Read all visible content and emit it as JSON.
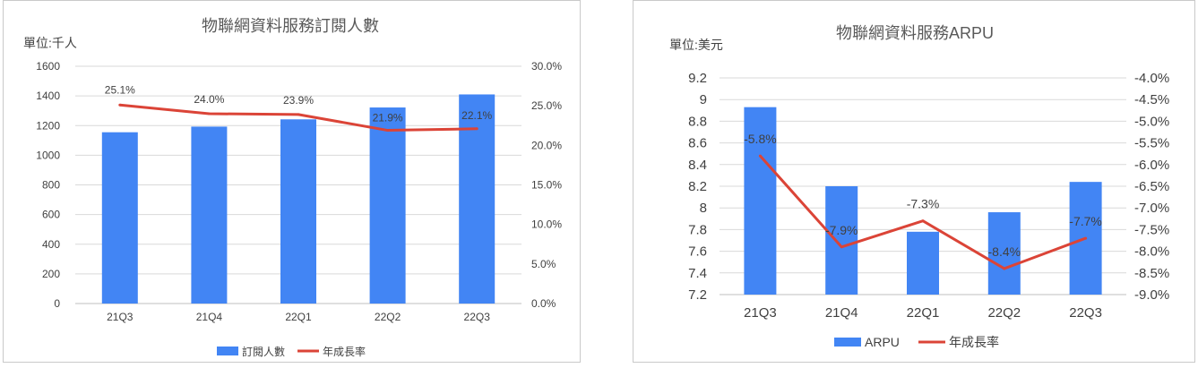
{
  "colors": {
    "bar": "#4285f4",
    "line": "#db4437",
    "grid": "#d9d9d9",
    "axis": "#bfbfbf"
  },
  "chart_data": [
    {
      "type": "bar",
      "title": "物聯網資料服務訂閱人數",
      "unit_label": "單位:千人",
      "categories": [
        "21Q3",
        "21Q4",
        "22Q1",
        "22Q2",
        "22Q3"
      ],
      "series": [
        {
          "name": "訂閱人數",
          "type": "bar",
          "axis": "left",
          "values": [
            1155,
            1193,
            1242,
            1322,
            1410
          ]
        },
        {
          "name": "年成長率",
          "type": "line",
          "axis": "right",
          "values": [
            25.1,
            24.0,
            23.9,
            21.9,
            22.1
          ],
          "labels": [
            "25.1%",
            "24.0%",
            "23.9%",
            "21.9%",
            "22.1%"
          ]
        }
      ],
      "y_left": {
        "min": 0,
        "max": 1600,
        "ticks": [
          "0",
          "200",
          "400",
          "600",
          "800",
          "1000",
          "1200",
          "1400",
          "1600"
        ]
      },
      "y_right": {
        "min": 0,
        "max": 30,
        "ticks": [
          "0.0%",
          "5.0%",
          "10.0%",
          "15.0%",
          "20.0%",
          "25.0%",
          "30.0%"
        ]
      },
      "grid": true,
      "legend": "bottom"
    },
    {
      "type": "bar",
      "title": "物聯網資料服務ARPU",
      "unit_label": "單位:美元",
      "categories": [
        "21Q3",
        "21Q4",
        "22Q1",
        "22Q2",
        "22Q3"
      ],
      "series": [
        {
          "name": "ARPU",
          "type": "bar",
          "axis": "left",
          "values": [
            8.93,
            8.2,
            7.78,
            7.96,
            8.24
          ]
        },
        {
          "name": "年成長率",
          "type": "line",
          "axis": "right",
          "values": [
            -5.8,
            -7.9,
            -7.3,
            -8.4,
            -7.7
          ],
          "labels": [
            "-5.8%",
            "-7.9%",
            "-7.3%",
            "-8.4%",
            "-7.7%"
          ]
        }
      ],
      "y_left": {
        "min": 7.2,
        "max": 9.2,
        "ticks": [
          "7.2",
          "7.4",
          "7.6",
          "7.8",
          "8",
          "8.2",
          "8.4",
          "8.6",
          "8.8",
          "9",
          "9.2"
        ]
      },
      "y_right": {
        "min": -9.0,
        "max": -4.0,
        "ticks": [
          "-9.0%",
          "-8.5%",
          "-8.0%",
          "-7.5%",
          "-7.0%",
          "-6.5%",
          "-6.0%",
          "-5.5%",
          "-5.0%",
          "-4.5%",
          "-4.0%"
        ]
      },
      "grid": true,
      "legend": "bottom"
    }
  ]
}
